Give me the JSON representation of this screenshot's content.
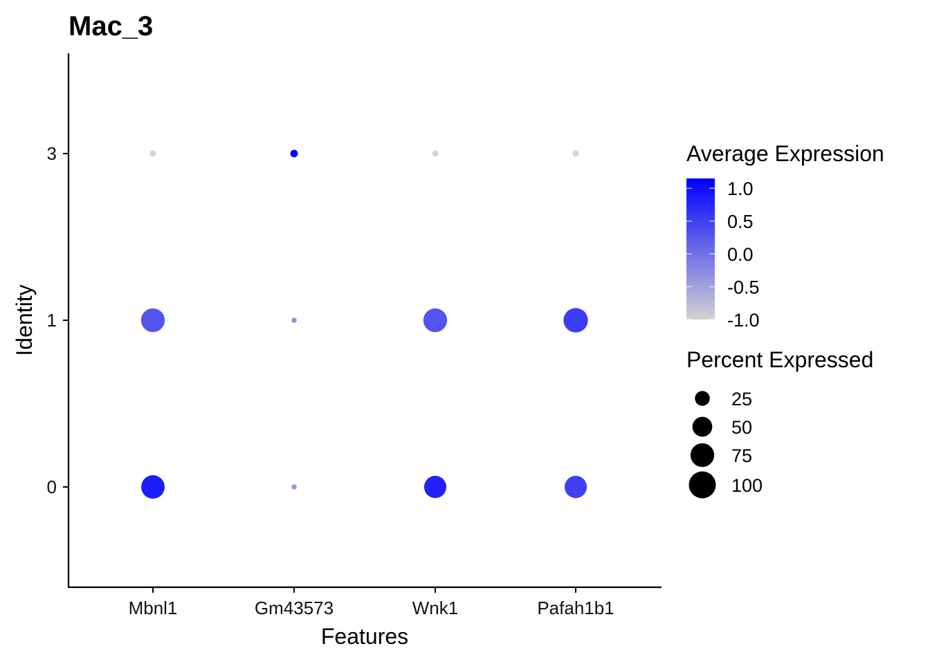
{
  "chart_data": {
    "type": "dot",
    "title": "Mac_3",
    "xlabel": "Features",
    "ylabel": "Identity",
    "categories": [
      "Mbnl1",
      "Gm43573",
      "Wnk1",
      "Pafah1b1"
    ],
    "identities": [
      "0",
      "1",
      "3"
    ],
    "grid": false,
    "points": [
      {
        "feature": "Mbnl1",
        "identity": "3",
        "avg_exp": -1.0,
        "pct_exp": 2
      },
      {
        "feature": "Gm43573",
        "identity": "3",
        "avg_exp": 1.15,
        "pct_exp": 4
      },
      {
        "feature": "Wnk1",
        "identity": "3",
        "avg_exp": -1.0,
        "pct_exp": 2
      },
      {
        "feature": "Pafah1b1",
        "identity": "3",
        "avg_exp": -1.0,
        "pct_exp": 2
      },
      {
        "feature": "Mbnl1",
        "identity": "1",
        "avg_exp": 0.3,
        "pct_exp": 75
      },
      {
        "feature": "Gm43573",
        "identity": "1",
        "avg_exp": -0.3,
        "pct_exp": 1
      },
      {
        "feature": "Wnk1",
        "identity": "1",
        "avg_exp": 0.3,
        "pct_exp": 75
      },
      {
        "feature": "Pafah1b1",
        "identity": "1",
        "avg_exp": 0.55,
        "pct_exp": 80
      },
      {
        "feature": "Mbnl1",
        "identity": "0",
        "avg_exp": 0.85,
        "pct_exp": 73
      },
      {
        "feature": "Gm43573",
        "identity": "0",
        "avg_exp": -0.4,
        "pct_exp": 1
      },
      {
        "feature": "Wnk1",
        "identity": "0",
        "avg_exp": 0.8,
        "pct_exp": 65
      },
      {
        "feature": "Pafah1b1",
        "identity": "0",
        "avg_exp": 0.5,
        "pct_exp": 65
      }
    ],
    "legend_color": {
      "title": "Average Expression",
      "ticks": [
        "1.0",
        "0.5",
        "0.0",
        "-0.5",
        "-1.0"
      ],
      "range": [
        -1.0,
        1.15
      ],
      "low_color": "#d3d3d3",
      "high_color": "#0000ff"
    },
    "legend_size": {
      "title": "Percent Expressed",
      "values": [
        25,
        50,
        75,
        100
      ],
      "labels": [
        "25",
        "50",
        "75",
        "100"
      ]
    },
    "legend_placement": "right"
  }
}
